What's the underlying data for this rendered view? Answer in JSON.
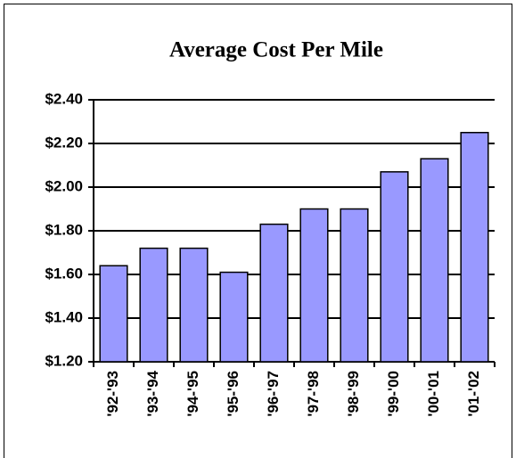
{
  "chart_data": {
    "type": "bar",
    "title": "Average Cost Per Mile",
    "categories": [
      "'92-'93",
      "'93-'94",
      "'94-'95",
      "'95-'96",
      "'96-'97",
      "'97-'98",
      "'98-'99",
      "'99-'00",
      "'00-'01",
      "'01-'02"
    ],
    "values": [
      1.64,
      1.72,
      1.72,
      1.61,
      1.83,
      1.9,
      1.9,
      2.07,
      2.13,
      2.25
    ],
    "color": "#9999ff",
    "ylim": [
      1.2,
      2.4
    ],
    "yticks": [
      {
        "value": 1.2,
        "label": "$1.20"
      },
      {
        "value": 1.4,
        "label": "$1.40"
      },
      {
        "value": 1.6,
        "label": "$1.60"
      },
      {
        "value": 1.8,
        "label": "$1.80"
      },
      {
        "value": 2.0,
        "label": "$2.00"
      },
      {
        "value": 2.2,
        "label": "$2.20"
      },
      {
        "value": 2.4,
        "label": "$2.40"
      }
    ],
    "grid": true
  }
}
